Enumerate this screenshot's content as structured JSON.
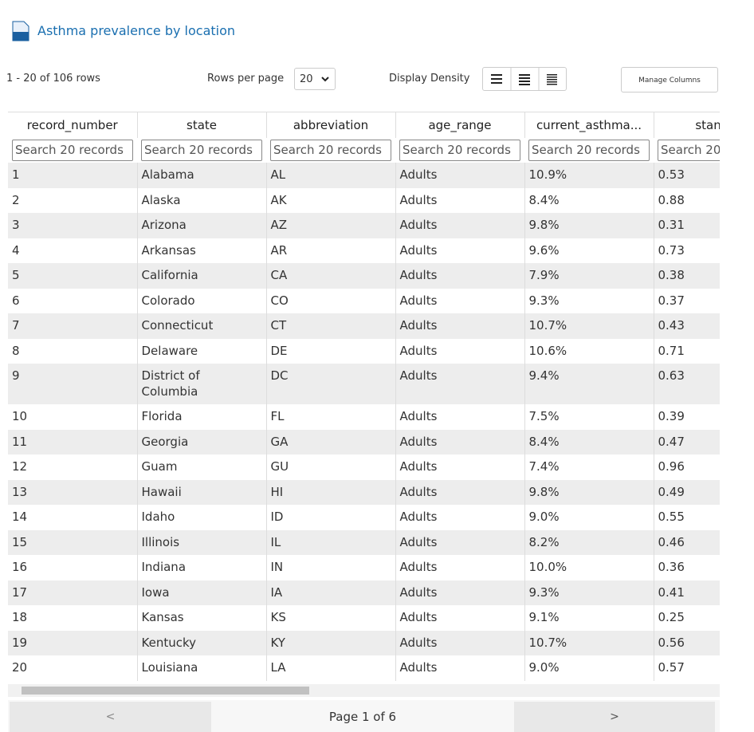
{
  "header": {
    "title": "Asthma prevalence by location"
  },
  "toolbar": {
    "row_count": "1 - 20 of 106 rows",
    "rows_per_page_label": "Rows per page",
    "rows_per_page": 20,
    "density_label": "Display Density",
    "manage_columns": "Manage Columns"
  },
  "table": {
    "columns": [
      "record_number",
      "state",
      "abbreviation",
      "age_range",
      "current_asthma...",
      "standar"
    ],
    "search_placeholder": "Search 20 records",
    "rows": [
      [
        1,
        "Alabama",
        "AL",
        "Adults",
        "10.9%",
        0.53
      ],
      [
        2,
        "Alaska",
        "AK",
        "Adults",
        "8.4%",
        0.88
      ],
      [
        3,
        "Arizona",
        "AZ",
        "Adults",
        "9.8%",
        0.31
      ],
      [
        4,
        "Arkansas",
        "AR",
        "Adults",
        "9.6%",
        0.73
      ],
      [
        5,
        "California",
        "CA",
        "Adults",
        "7.9%",
        0.38
      ],
      [
        6,
        "Colorado",
        "CO",
        "Adults",
        "9.3%",
        0.37
      ],
      [
        7,
        "Connecticut",
        "CT",
        "Adults",
        "10.7%",
        0.43
      ],
      [
        8,
        "Delaware",
        "DE",
        "Adults",
        "10.6%",
        0.71
      ],
      [
        9,
        "District of Columbia",
        "DC",
        "Adults",
        "9.4%",
        0.63
      ],
      [
        10,
        "Florida",
        "FL",
        "Adults",
        "7.5%",
        0.39
      ],
      [
        11,
        "Georgia",
        "GA",
        "Adults",
        "8.4%",
        0.47
      ],
      [
        12,
        "Guam",
        "GU",
        "Adults",
        "7.4%",
        0.96
      ],
      [
        13,
        "Hawaii",
        "HI",
        "Adults",
        "9.8%",
        0.49
      ],
      [
        14,
        "Idaho",
        "ID",
        "Adults",
        "9.0%",
        0.55
      ],
      [
        15,
        "Illinois",
        "IL",
        "Adults",
        "8.2%",
        0.46
      ],
      [
        16,
        "Indiana",
        "IN",
        "Adults",
        "10.0%",
        0.36
      ],
      [
        17,
        "Iowa",
        "IA",
        "Adults",
        "9.3%",
        0.41
      ],
      [
        18,
        "Kansas",
        "KS",
        "Adults",
        "9.1%",
        0.25
      ],
      [
        19,
        "Kentucky",
        "KY",
        "Adults",
        "10.7%",
        0.56
      ],
      [
        20,
        "Louisiana",
        "LA",
        "Adults",
        "9.0%",
        0.57
      ]
    ]
  },
  "pagination": {
    "prev": "<",
    "page": "Page 1 of 6",
    "next": ">"
  }
}
